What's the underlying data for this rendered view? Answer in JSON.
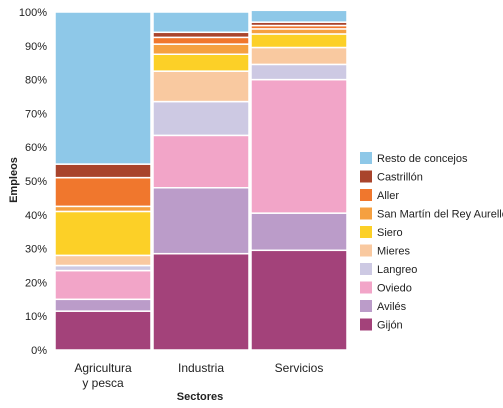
{
  "chart_data": {
    "type": "bar",
    "stacked": true,
    "xlabel": "Sectores",
    "ylabel": "Empleos",
    "ylim": [
      0,
      100
    ],
    "y_ticks": [
      "0%",
      "10%",
      "20%",
      "30%",
      "40%",
      "50%",
      "60%",
      "70%",
      "80%",
      "90%",
      "100%"
    ],
    "grid": false,
    "legend_position": "right",
    "categories": [
      "Agricultura y pesca",
      "Industria",
      "Servicios"
    ],
    "category_lines": [
      [
        "Agricultura",
        "y pesca"
      ],
      [
        "Industria"
      ],
      [
        "Servicios"
      ]
    ],
    "series": [
      {
        "name": "Gijón",
        "color": "#a3427a",
        "values": [
          11.5,
          28.5,
          29.5
        ]
      },
      {
        "name": "Avilés",
        "color": "#bb9cc9",
        "values": [
          3.5,
          19.5,
          11.0
        ]
      },
      {
        "name": "Oviedo",
        "color": "#f2a5c8",
        "values": [
          8.5,
          15.5,
          39.5
        ]
      },
      {
        "name": "Langreo",
        "color": "#cdc9e3",
        "values": [
          1.5,
          10.0,
          4.5
        ]
      },
      {
        "name": "Mieres",
        "color": "#f9c9a0",
        "values": [
          3.0,
          9.0,
          5.0
        ]
      },
      {
        "name": "Siero",
        "color": "#fcd027",
        "values": [
          13.0,
          5.0,
          4.0
        ]
      },
      {
        "name": "San Martín del Rey Aurello",
        "color": "#f5a040",
        "values": [
          1.5,
          3.0,
          1.5
        ]
      },
      {
        "name": "Aller",
        "color": "#f0772d",
        "values": [
          8.5,
          2.0,
          1.0
        ]
      },
      {
        "name": "Castrillón",
        "color": "#a9442c",
        "values": [
          4.0,
          1.5,
          1.0
        ]
      },
      {
        "name": "Resto de concejos",
        "color": "#8ec8e8",
        "values": [
          45.0,
          6.0,
          3.5
        ]
      }
    ],
    "legend_order": [
      "Resto de concejos",
      "Castrillón",
      "Aller",
      "San Martín del Rey Aurello",
      "Siero",
      "Mieres",
      "Langreo",
      "Oviedo",
      "Avilés",
      "Gijón"
    ]
  }
}
